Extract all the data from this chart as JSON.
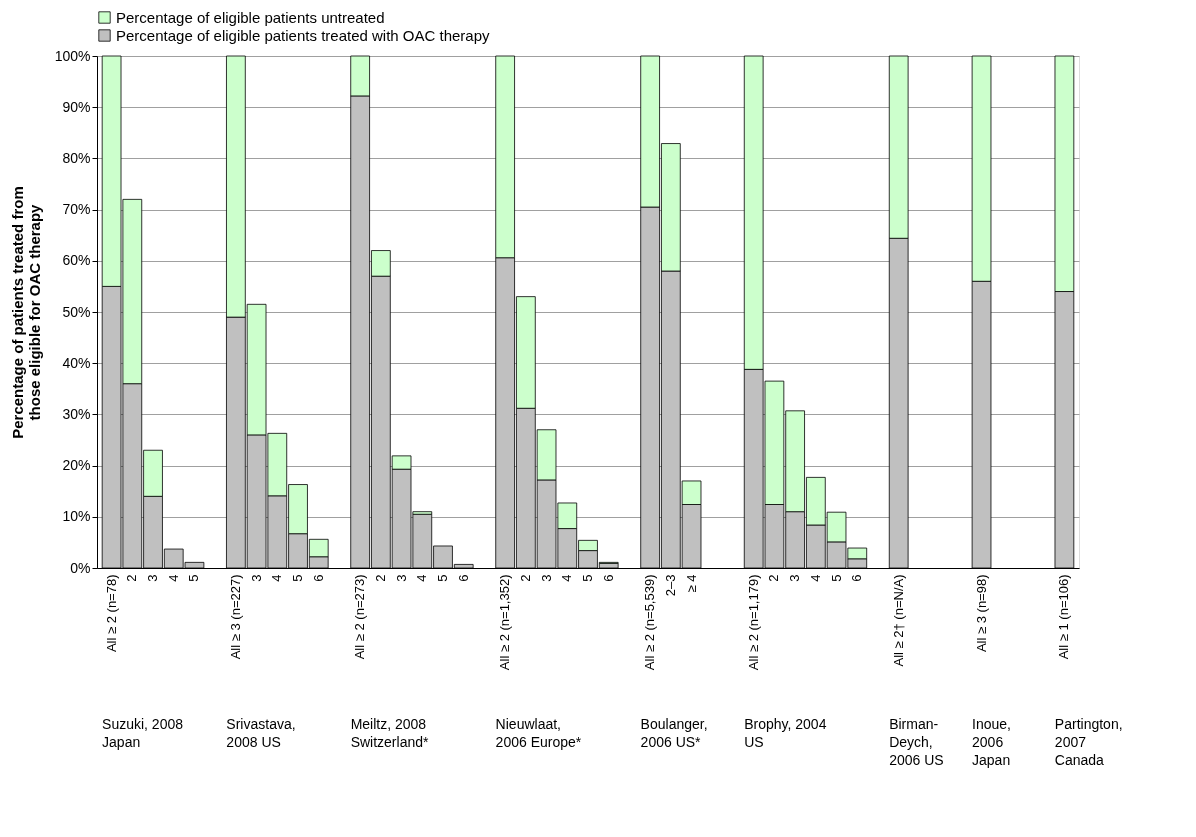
{
  "chart_data": {
    "type": "bar",
    "stacked": true,
    "ylabel": "Percentage of patients treated from\nthose eligible for OAC therapy",
    "categories": [
      "All ≥ 2 (n=78)",
      "2",
      "3",
      "4",
      "5",
      null,
      "All ≥ 3 (n=227)",
      "3",
      "4",
      "5",
      "6",
      null,
      "All ≥ 2 (n=273)",
      "2",
      "3",
      "4",
      "5",
      "6",
      null,
      "All ≥ 2 (n=1,352)",
      "2",
      "3",
      "4",
      "5",
      "6",
      null,
      "All ≥ 2 (n=5,539)",
      "2–3",
      "≥ 4",
      null,
      null,
      "All ≥ 2 (n=1,179)",
      "2",
      "3",
      "4",
      "5",
      "6",
      null,
      "All ≥ 2† (n=N/A)",
      null,
      null,
      null,
      "All ≥ 3 (n=98)",
      null,
      null,
      null,
      "All ≥ 1 (n=106)"
    ],
    "series": [
      {
        "name": "Percentage of eligible patients treated with OAC therapy",
        "color": "#c0c0c0",
        "values": [
          55,
          36,
          14,
          3.7,
          1.1,
          null,
          49,
          26,
          14.1,
          6.7,
          2.2,
          null,
          92.2,
          57,
          19.3,
          10.5,
          4.3,
          0.7,
          null,
          60.6,
          31.2,
          17.2,
          7.7,
          3.4,
          0.9,
          null,
          70.5,
          58,
          12.4,
          null,
          null,
          38.8,
          12.4,
          11,
          8.4,
          5.1,
          1.8,
          null,
          64.4,
          null,
          null,
          null,
          56,
          null,
          null,
          null,
          54
        ]
      },
      {
        "name": "Percentage of eligible patients untreated",
        "color": "#ccffcc",
        "values": [
          45,
          36,
          9,
          null,
          null,
          null,
          51,
          25.5,
          12.2,
          9.6,
          3.4,
          null,
          7.8,
          5,
          2.6,
          0.5,
          null,
          null,
          null,
          39.4,
          21.8,
          9.8,
          5,
          2,
          0.2,
          null,
          29.5,
          24.9,
          4.6,
          null,
          null,
          61.2,
          24.1,
          19.7,
          9.3,
          5.8,
          2.1,
          null,
          35.6,
          null,
          null,
          null,
          44,
          null,
          null,
          null,
          46
        ]
      }
    ],
    "ylim": [
      0,
      100
    ],
    "yticks": [
      {
        "value": 0,
        "label": "0%"
      },
      {
        "value": 10,
        "label": "10%"
      },
      {
        "value": 20,
        "label": "20%"
      },
      {
        "value": 30,
        "label": "30%"
      },
      {
        "value": 40,
        "label": "40%"
      },
      {
        "value": 50,
        "label": "50%"
      },
      {
        "value": 60,
        "label": "60%"
      },
      {
        "value": 70,
        "label": "70%"
      },
      {
        "value": 80,
        "label": "80%"
      },
      {
        "value": 90,
        "label": "90%"
      },
      {
        "value": 100,
        "label": "100%"
      }
    ],
    "grid": "y",
    "legend": "top",
    "annotations": [
      "Suzuki, 2008\nJapan",
      "Srivastava,\n2008 US",
      "Meiltz, 2008\nSwitzerland*",
      "Nieuwlaat,\n2006 Europe*",
      "Boulanger,\n2006 US*",
      "Brophy, 2004\nUS",
      "Birman-\nDeych,\n2006 US",
      "Inoue,\n2006\nJapan",
      "Partington,\n2007\nCanada"
    ]
  }
}
